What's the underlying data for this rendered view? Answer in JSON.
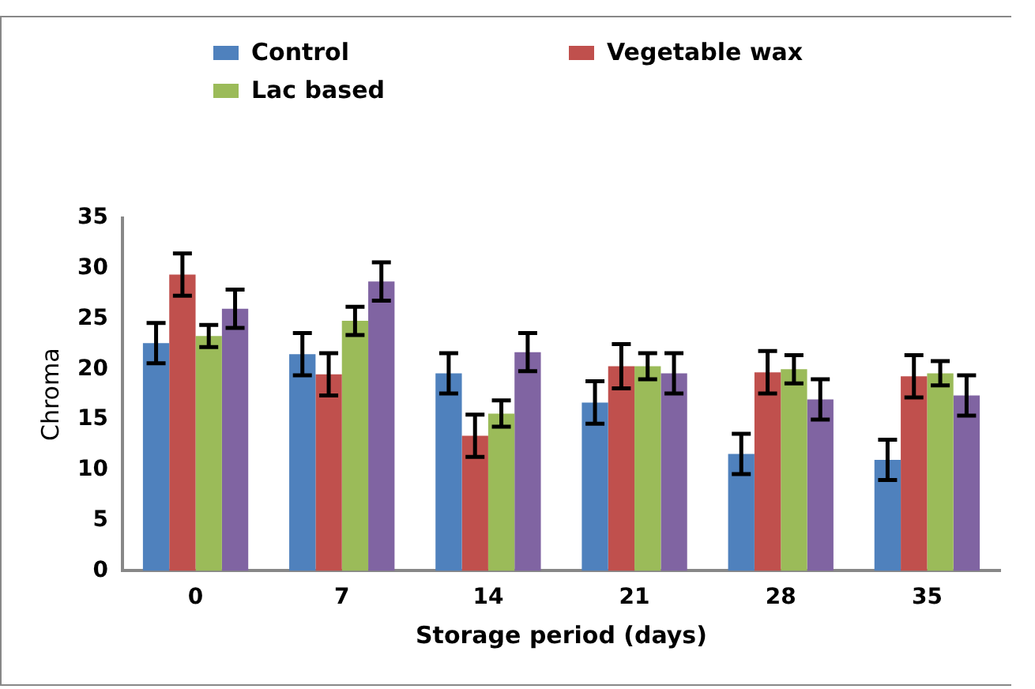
{
  "chart_data": {
    "type": "bar",
    "xlabel": "Storage period (days)",
    "ylabel": "Chroma",
    "categories": [
      "0",
      "7",
      "14",
      "21",
      "28",
      "35"
    ],
    "ylim": [
      0,
      35
    ],
    "yticks": [
      0,
      5,
      10,
      15,
      20,
      25,
      30,
      35
    ],
    "grid": false,
    "legend": "top",
    "series": [
      {
        "name": "Control",
        "color": "#4f81bd",
        "values": [
          22.6,
          21.5,
          19.6,
          16.7,
          11.6,
          11.0
        ],
        "errors": [
          2.0,
          2.1,
          2.0,
          2.1,
          2.0,
          2.0
        ]
      },
      {
        "name": "Vegetable wax",
        "color": "#c0504d",
        "values": [
          29.4,
          19.5,
          13.4,
          20.3,
          19.7,
          19.3
        ],
        "errors": [
          2.1,
          2.1,
          2.1,
          2.2,
          2.1,
          2.1
        ]
      },
      {
        "name": "Lac based",
        "color": "#9bbb59",
        "values": [
          23.3,
          24.8,
          15.6,
          20.3,
          20.0,
          19.6
        ],
        "errors": [
          1.1,
          1.4,
          1.3,
          1.3,
          1.4,
          1.2
        ]
      },
      {
        "color": "#8064a2",
        "values": [
          26.0,
          28.7,
          21.7,
          19.6,
          17.0,
          17.4
        ],
        "errors": [
          1.9,
          1.9,
          1.9,
          2.0,
          2.0,
          2.0
        ]
      }
    ]
  }
}
